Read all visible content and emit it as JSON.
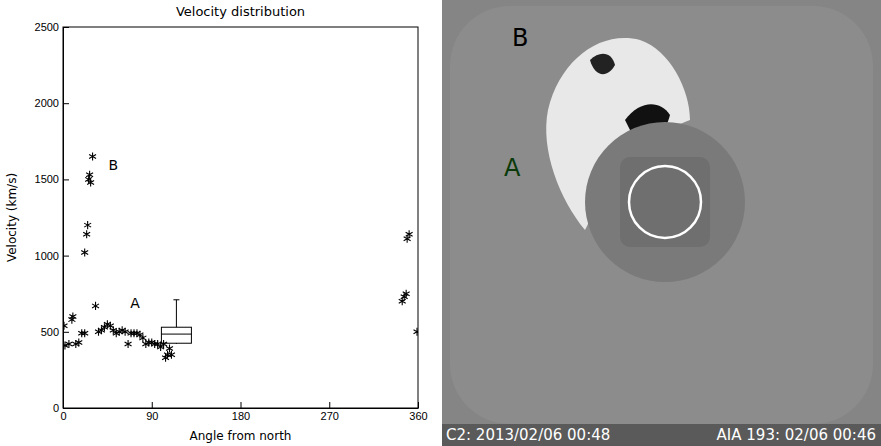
{
  "chart_data": {
    "type": "scatter",
    "title": "Velocity distribution",
    "x_label": "Angle from north",
    "y_label": "Velocity (km/s)",
    "x": [
      1,
      2,
      6,
      9,
      10,
      13,
      16,
      19,
      22,
      22,
      24,
      25,
      26,
      27,
      28,
      30,
      33,
      36,
      39,
      42,
      45,
      48,
      51,
      54,
      57,
      60,
      63,
      66,
      69,
      72,
      75,
      78,
      81,
      84,
      87,
      90,
      93,
      96,
      99,
      102,
      104,
      106,
      108,
      110,
      344,
      346,
      348,
      349,
      351,
      359
    ],
    "values": [
      540,
      410,
      420,
      580,
      600,
      420,
      430,
      490,
      490,
      1020,
      1140,
      1200,
      1500,
      1530,
      1480,
      1650,
      670,
      500,
      510,
      530,
      550,
      540,
      510,
      490,
      500,
      510,
      500,
      420,
      490,
      490,
      490,
      480,
      460,
      420,
      430,
      430,
      420,
      420,
      400,
      420,
      330,
      350,
      390,
      350,
      700,
      730,
      750,
      1110,
      1140,
      500
    ],
    "marker": "star",
    "color": "#000000",
    "box": {
      "x": 115,
      "low": 420,
      "q1": 425,
      "median": 485,
      "q3": 530,
      "high": 710
    },
    "annotations": [
      {
        "text": "A",
        "x": 73,
        "y": 680
      },
      {
        "text": "B",
        "x": 51,
        "y": 1590
      }
    ],
    "xlim": [
      0,
      360
    ],
    "xticks": [
      0,
      90,
      180,
      270,
      360
    ],
    "ylim": [
      0,
      2500
    ],
    "yticks": [
      0,
      500,
      1000,
      1500,
      2000,
      2500
    ],
    "grid": false
  },
  "image_panel": {
    "labels": [
      "B",
      "A"
    ],
    "captions": [
      "C2: 2013/02/06 00:48",
      "AIA 193: 02/06 00:46"
    ]
  }
}
